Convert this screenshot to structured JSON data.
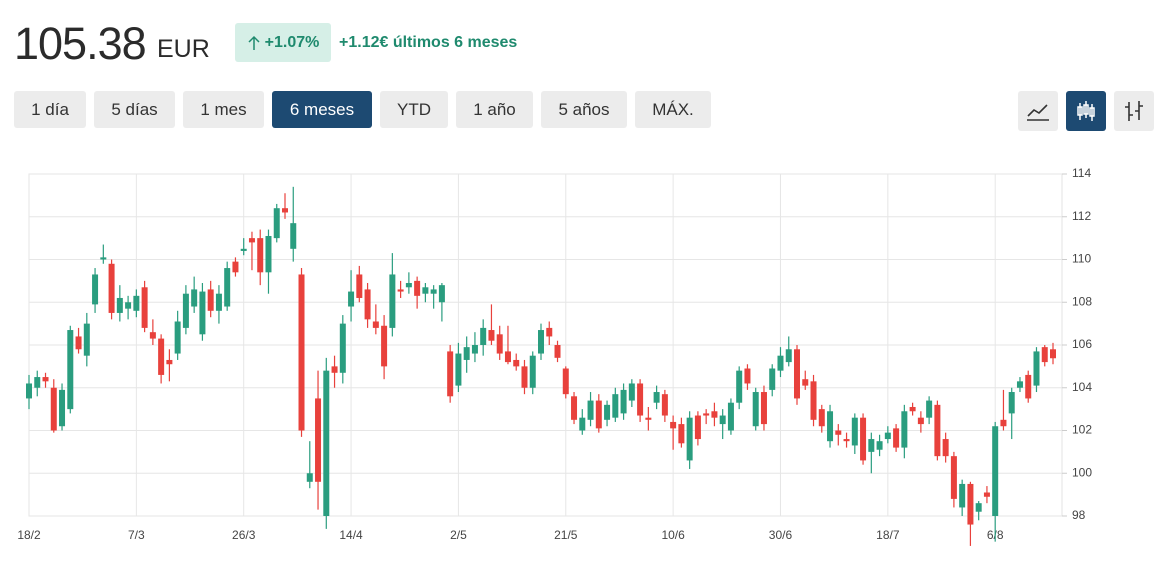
{
  "header": {
    "price": "105.38",
    "currency": "EUR",
    "change_pct": "+1.07%",
    "change_text": "+1.12€ últimos 6 meses"
  },
  "ranges": [
    "1 día",
    "5 días",
    "1 mes",
    "6 meses",
    "YTD",
    "1 año",
    "5 años",
    "MÁX."
  ],
  "active_range": 3,
  "chart_data": {
    "type": "candlestick",
    "up_color": "#2a9d7f",
    "down_color": "#e8413c",
    "grid": true,
    "ylim": [
      98,
      114
    ],
    "yticks": [
      98,
      100,
      102,
      104,
      106,
      108,
      110,
      112,
      114
    ],
    "categories": [
      "18/2",
      null,
      null,
      null,
      null,
      null,
      null,
      null,
      null,
      null,
      null,
      null,
      null,
      "7/3",
      null,
      null,
      null,
      null,
      null,
      null,
      null,
      null,
      null,
      null,
      null,
      null,
      "26/3",
      null,
      null,
      null,
      null,
      null,
      null,
      null,
      null,
      null,
      null,
      null,
      null,
      "14/4",
      null,
      null,
      null,
      null,
      null,
      null,
      null,
      null,
      null,
      null,
      null,
      null,
      "2/5",
      null,
      null,
      null,
      null,
      null,
      null,
      null,
      null,
      null,
      null,
      null,
      null,
      "21/5",
      null,
      null,
      null,
      null,
      null,
      null,
      null,
      null,
      null,
      null,
      null,
      null,
      "10/6",
      null,
      null,
      null,
      null,
      null,
      null,
      null,
      null,
      null,
      null,
      null,
      null,
      "30/6",
      null,
      null,
      null,
      null,
      null,
      null,
      null,
      null,
      null,
      null,
      null,
      null,
      "18/7",
      null,
      null,
      null,
      null,
      null,
      null,
      null,
      null,
      null,
      null,
      null,
      null,
      "6/8",
      null,
      null,
      null,
      null,
      null,
      null,
      null
    ],
    "candles": [
      [
        103.5,
        104.6,
        103,
        104.2
      ],
      [
        104.0,
        104.8,
        103.6,
        104.5
      ],
      [
        104.5,
        104.7,
        104.0,
        104.3
      ],
      [
        104.0,
        104.4,
        101.9,
        102.0
      ],
      [
        102.2,
        104.2,
        102.0,
        103.9
      ],
      [
        103.0,
        106.9,
        102.8,
        106.7
      ],
      [
        106.4,
        106.8,
        105.6,
        105.8
      ],
      [
        105.5,
        107.5,
        105.0,
        107.0
      ],
      [
        107.9,
        109.6,
        107.5,
        109.3
      ],
      [
        110.0,
        110.7,
        109.8,
        110.1
      ],
      [
        109.8,
        110.0,
        107.2,
        107.5
      ],
      [
        107.5,
        108.8,
        107.1,
        108.2
      ],
      [
        107.7,
        108.3,
        107.2,
        108.0
      ],
      [
        107.6,
        108.6,
        107.3,
        108.3
      ],
      [
        108.7,
        109.0,
        106.6,
        106.8
      ],
      [
        106.6,
        107.2,
        106.0,
        106.3
      ],
      [
        106.3,
        106.5,
        104.2,
        104.6
      ],
      [
        105.3,
        105.8,
        104.3,
        105.1
      ],
      [
        105.6,
        107.6,
        105.3,
        107.1
      ],
      [
        106.8,
        108.8,
        106.5,
        108.4
      ],
      [
        107.8,
        109.2,
        107.5,
        108.6
      ],
      [
        106.5,
        108.9,
        106.2,
        108.5
      ],
      [
        108.6,
        109.0,
        107.3,
        107.6
      ],
      [
        107.6,
        108.8,
        107.0,
        108.4
      ],
      [
        107.8,
        109.9,
        107.6,
        109.6
      ],
      [
        109.9,
        110.1,
        109.2,
        109.4
      ],
      [
        110.4,
        111.0,
        110.2,
        110.5
      ],
      [
        111.0,
        111.3,
        109.5,
        110.8
      ],
      [
        111.0,
        111.4,
        108.8,
        109.4
      ],
      [
        109.4,
        111.4,
        108.4,
        111.1
      ],
      [
        111.0,
        112.6,
        110.8,
        112.4
      ],
      [
        112.4,
        113.1,
        111.9,
        112.2
      ],
      [
        110.5,
        113.4,
        109.9,
        111.7
      ],
      [
        109.3,
        109.6,
        101.7,
        102.0
      ],
      [
        99.6,
        101.5,
        99.3,
        100.0
      ],
      [
        103.5,
        104.8,
        98.3,
        99.6
      ],
      [
        98.0,
        105.4,
        97.4,
        104.8
      ],
      [
        105.0,
        105.5,
        104.0,
        104.7
      ],
      [
        104.7,
        107.4,
        104.2,
        107.0
      ],
      [
        107.8,
        109.5,
        107.1,
        108.5
      ],
      [
        109.3,
        109.7,
        108.0,
        108.2
      ],
      [
        108.6,
        108.9,
        106.8,
        107.2
      ],
      [
        107.1,
        107.9,
        106.5,
        106.8
      ],
      [
        106.9,
        107.4,
        104.4,
        105.0
      ],
      [
        106.8,
        110.3,
        106.4,
        109.3
      ],
      [
        108.6,
        109.0,
        108.2,
        108.5
      ],
      [
        108.7,
        109.4,
        108.4,
        108.9
      ],
      [
        109.0,
        109.2,
        107.7,
        108.3
      ],
      [
        108.4,
        108.9,
        108.0,
        108.7
      ],
      [
        108.4,
        108.8,
        107.7,
        108.6
      ],
      [
        108.0,
        108.9,
        107.1,
        108.8
      ],
      [
        105.7,
        106.0,
        103.3,
        103.6
      ],
      [
        104.1,
        106.1,
        103.8,
        105.6
      ],
      [
        105.3,
        106.4,
        104.7,
        105.9
      ],
      [
        105.6,
        106.6,
        105.2,
        106.0
      ],
      [
        106.0,
        107.2,
        105.5,
        106.8
      ],
      [
        106.7,
        107.9,
        106.0,
        106.2
      ],
      [
        106.5,
        106.9,
        105.3,
        105.6
      ],
      [
        105.7,
        106.9,
        105.1,
        105.2
      ],
      [
        105.3,
        105.6,
        104.8,
        105.0
      ],
      [
        105.0,
        105.3,
        103.7,
        104.0
      ],
      [
        104.0,
        105.7,
        103.7,
        105.5
      ],
      [
        105.6,
        107.0,
        105.3,
        106.7
      ],
      [
        106.8,
        107.1,
        106.0,
        106.4
      ],
      [
        106.0,
        106.2,
        105.2,
        105.4
      ],
      [
        104.9,
        105.0,
        103.5,
        103.7
      ],
      [
        103.6,
        103.8,
        102.3,
        102.5
      ],
      [
        102.0,
        103.0,
        101.8,
        102.6
      ],
      [
        102.5,
        103.8,
        102.2,
        103.4
      ],
      [
        103.4,
        103.7,
        101.9,
        102.1
      ],
      [
        102.5,
        103.4,
        102.2,
        103.2
      ],
      [
        102.6,
        104.0,
        102.4,
        103.7
      ],
      [
        102.8,
        104.2,
        102.5,
        103.9
      ],
      [
        103.4,
        104.4,
        103.1,
        104.2
      ],
      [
        104.2,
        104.4,
        102.4,
        102.7
      ],
      [
        102.6,
        103.1,
        102.0,
        102.5
      ],
      [
        103.3,
        104.1,
        103.0,
        103.8
      ],
      [
        103.7,
        103.9,
        102.4,
        102.7
      ],
      [
        102.4,
        102.7,
        101.1,
        102.1
      ],
      [
        102.3,
        102.6,
        101.2,
        101.4
      ],
      [
        100.6,
        102.9,
        100.2,
        102.6
      ],
      [
        102.7,
        102.9,
        101.3,
        101.6
      ],
      [
        102.8,
        103.0,
        102.3,
        102.7
      ],
      [
        102.9,
        103.3,
        102.2,
        102.6
      ],
      [
        102.3,
        103.0,
        101.6,
        102.7
      ],
      [
        102.0,
        103.5,
        101.8,
        103.3
      ],
      [
        103.3,
        105.0,
        103.0,
        104.8
      ],
      [
        104.9,
        105.1,
        103.9,
        104.2
      ],
      [
        102.2,
        104.0,
        102.0,
        103.8
      ],
      [
        103.8,
        104.1,
        102.0,
        102.3
      ],
      [
        103.9,
        105.1,
        103.6,
        104.9
      ],
      [
        104.8,
        105.9,
        104.5,
        105.5
      ],
      [
        105.2,
        106.4,
        105.0,
        105.8
      ],
      [
        105.8,
        106.0,
        103.2,
        103.5
      ],
      [
        104.4,
        104.8,
        103.9,
        104.1
      ],
      [
        104.3,
        104.6,
        102.2,
        102.5
      ],
      [
        103.0,
        103.2,
        101.9,
        102.2
      ],
      [
        101.5,
        103.2,
        101.2,
        102.9
      ],
      [
        102.0,
        102.3,
        101.3,
        101.8
      ],
      [
        101.6,
        101.9,
        101.2,
        101.5
      ],
      [
        101.3,
        102.8,
        100.9,
        102.6
      ],
      [
        102.6,
        102.8,
        100.4,
        100.6
      ],
      [
        101.0,
        101.9,
        100.0,
        101.6
      ],
      [
        101.1,
        101.8,
        100.8,
        101.5
      ],
      [
        101.6,
        102.2,
        101.4,
        101.9
      ],
      [
        102.1,
        102.3,
        101.0,
        101.2
      ],
      [
        101.2,
        103.2,
        100.7,
        102.9
      ],
      [
        103.1,
        103.3,
        102.7,
        102.9
      ],
      [
        102.6,
        102.9,
        101.9,
        102.3
      ],
      [
        102.6,
        103.6,
        102.3,
        103.4
      ],
      [
        103.2,
        103.4,
        100.6,
        100.8
      ],
      [
        101.6,
        101.9,
        100.5,
        100.8
      ],
      [
        100.8,
        101.0,
        98.4,
        98.8
      ],
      [
        98.4,
        99.7,
        98.0,
        99.5
      ],
      [
        99.5,
        99.6,
        96.6,
        97.6
      ],
      [
        98.2,
        98.7,
        97.8,
        98.6
      ],
      [
        99.1,
        99.4,
        98.6,
        98.9
      ],
      [
        98.0,
        102.4,
        96.8,
        102.2
      ],
      [
        102.5,
        103.9,
        102.0,
        102.2
      ],
      [
        102.8,
        104.0,
        101.6,
        103.8
      ],
      [
        104.0,
        104.5,
        103.8,
        104.3
      ],
      [
        104.6,
        104.8,
        103.3,
        103.5
      ],
      [
        104.1,
        105.9,
        103.8,
        105.7
      ],
      [
        105.9,
        106.0,
        105.0,
        105.2
      ],
      [
        105.8,
        106.1,
        105.1,
        105.38
      ]
    ]
  }
}
